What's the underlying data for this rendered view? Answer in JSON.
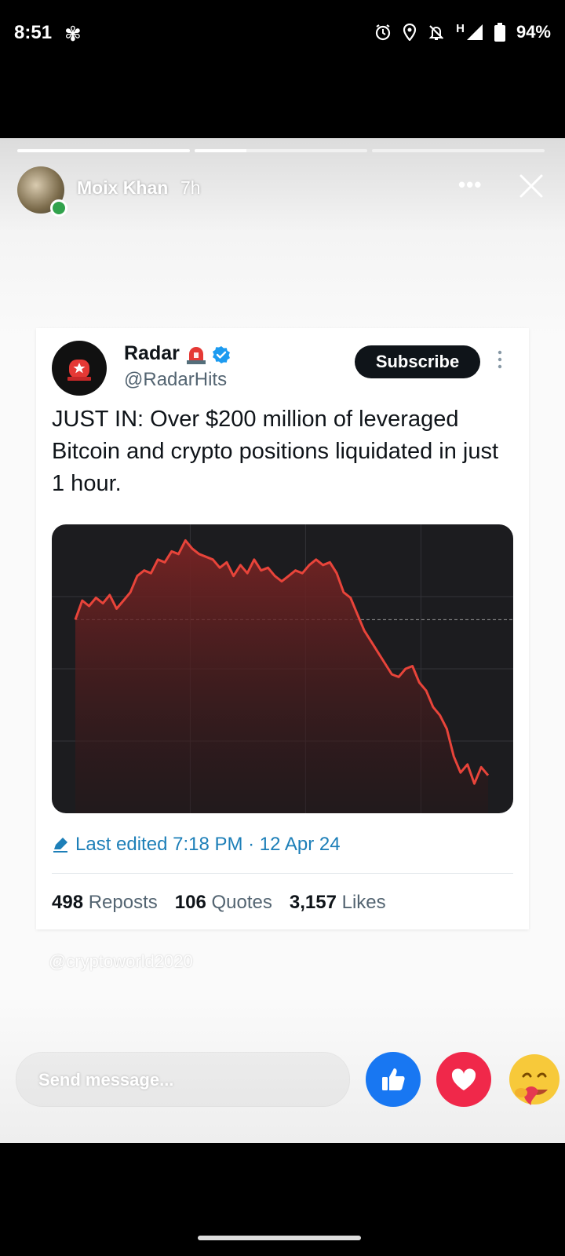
{
  "status_bar": {
    "time": "8:51",
    "network": "H",
    "battery": "94%"
  },
  "story": {
    "progress": [
      1.0,
      0.3,
      0.0
    ],
    "user_name": "Moix Khan",
    "posted_ago": "7h",
    "more_label": "•••",
    "watermark": "@cryptoworld2020",
    "send_placeholder": "Send message...",
    "reactions": [
      "like-icon",
      "heart-icon",
      "care-emoji-icon"
    ]
  },
  "tweet": {
    "name": "Radar",
    "handle": "@RadarHits",
    "subscribe_label": "Subscribe",
    "text": "JUST IN: Over $200 million of leveraged Bitcoin and crypto positions liquidated in just 1 hour.",
    "edited": "Last edited 7:18 PM · 12 Apr 24",
    "stats": {
      "reposts_count": "498",
      "reposts_label": "Reposts",
      "quotes_count": "106",
      "quotes_label": "Quotes",
      "likes_count": "3,157",
      "likes_label": "Likes"
    },
    "colors": {
      "verified": "#1d9bf0",
      "edited": "#1d7fb8",
      "chart_line": "#e8443a"
    }
  },
  "chart_data": {
    "type": "area",
    "title": "",
    "xlabel": "",
    "ylabel": "",
    "ylim": [
      0,
      100
    ],
    "grid": true,
    "reference_line": 68,
    "series": [
      {
        "values": [
          68,
          75,
          73,
          76,
          74,
          77,
          72,
          75,
          78,
          84,
          86,
          85,
          90,
          89,
          93,
          92,
          97,
          94,
          92,
          91,
          90,
          87,
          89,
          84,
          88,
          85,
          90,
          86,
          87,
          84,
          82,
          84,
          86,
          85,
          88,
          90,
          88,
          89,
          85,
          78,
          76,
          70,
          64,
          60,
          56,
          52,
          48,
          47,
          50,
          51,
          45,
          42,
          36,
          33,
          28,
          18,
          12,
          15,
          8,
          14,
          11
        ]
      }
    ]
  }
}
